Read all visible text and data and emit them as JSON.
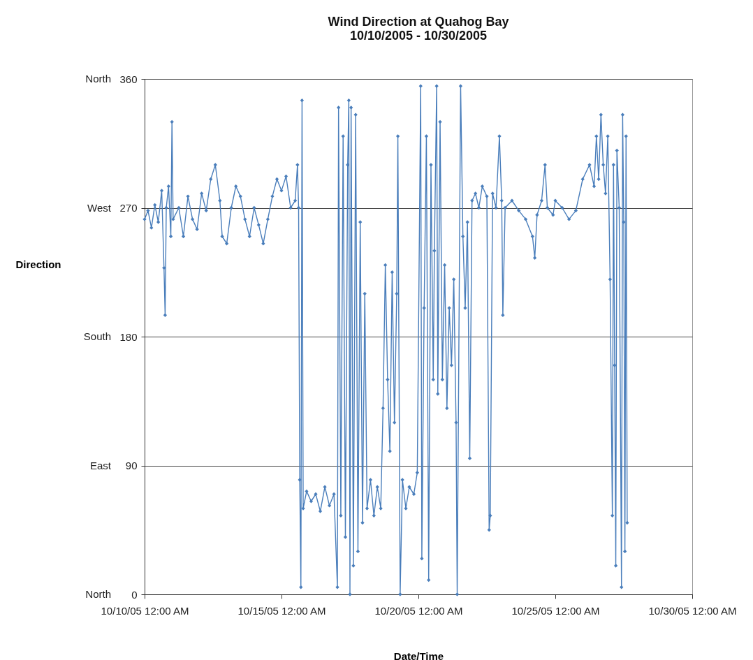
{
  "chart_data": {
    "type": "line",
    "title": "Wind Direction at Quahog Bay",
    "subtitle": "10/10/2005 - 10/30/2005",
    "xlabel": "Date/Time",
    "ylabel": "Direction",
    "x": [
      "2005-10-10T00:00",
      "2005-10-10T03:00",
      "2005-10-10T06:00",
      "2005-10-10T09:00",
      "2005-10-10T12:00",
      "2005-10-10T15:00",
      "2005-10-10T17:00",
      "2005-10-10T18:00",
      "2005-10-10T19:00",
      "2005-10-10T21:00",
      "2005-10-10T23:00",
      "2005-10-11T00:00",
      "2005-10-11T01:00",
      "2005-10-11T06:00",
      "2005-10-11T10:00",
      "2005-10-11T14:00",
      "2005-10-11T18:00",
      "2005-10-11T22:00",
      "2005-10-12T02:00",
      "2005-10-12T06:00",
      "2005-10-12T10:00",
      "2005-10-12T14:00",
      "2005-10-12T18:00",
      "2005-10-12T20:00",
      "2005-10-13T00:00",
      "2005-10-13T04:00",
      "2005-10-13T08:00",
      "2005-10-13T12:00",
      "2005-10-13T16:00",
      "2005-10-13T20:00",
      "2005-10-14T00:00",
      "2005-10-14T04:00",
      "2005-10-14T08:00",
      "2005-10-14T12:00",
      "2005-10-14T16:00",
      "2005-10-14T20:00",
      "2005-10-15T00:00",
      "2005-10-15T04:00",
      "2005-10-15T08:00",
      "2005-10-15T12:00",
      "2005-10-15T14:00",
      "2005-10-15T15:00",
      "2005-10-15T16:00",
      "2005-10-15T17:00",
      "2005-10-15T18:00",
      "2005-10-15T19:00",
      "2005-10-15T22:00",
      "2005-10-16T02:00",
      "2005-10-16T06:00",
      "2005-10-16T10:00",
      "2005-10-16T14:00",
      "2005-10-16T18:00",
      "2005-10-16T22:00",
      "2005-10-17T01:00",
      "2005-10-17T02:00",
      "2005-10-17T04:00",
      "2005-10-17T06:00",
      "2005-10-17T08:00",
      "2005-10-17T10:00",
      "2005-10-17T11:00",
      "2005-10-17T12:00",
      "2005-10-17T13:00",
      "2005-10-17T15:00",
      "2005-10-17T17:00",
      "2005-10-17T19:00",
      "2005-10-17T21:00",
      "2005-10-17T23:00",
      "2005-10-18T01:00",
      "2005-10-18T03:00",
      "2005-10-18T06:00",
      "2005-10-18T09:00",
      "2005-10-18T12:00",
      "2005-10-18T15:00",
      "2005-10-18T17:00",
      "2005-10-18T19:00",
      "2005-10-18T21:00",
      "2005-10-18T23:00",
      "2005-10-19T01:00",
      "2005-10-19T03:00",
      "2005-10-19T05:00",
      "2005-10-19T06:00",
      "2005-10-19T08:00",
      "2005-10-19T10:00",
      "2005-10-19T13:00",
      "2005-10-19T16:00",
      "2005-10-19T20:00",
      "2005-10-19T23:00",
      "2005-10-20T02:00",
      "2005-10-20T03:00",
      "2005-10-20T05:00",
      "2005-10-20T07:00",
      "2005-10-20T09:00",
      "2005-10-20T11:00",
      "2005-10-20T13:00",
      "2005-10-20T14:00",
      "2005-10-20T16:00",
      "2005-10-20T17:00",
      "2005-10-20T19:00",
      "2005-10-20T21:00",
      "2005-10-20T23:00",
      "2005-10-21T01:00",
      "2005-10-21T03:00",
      "2005-10-21T05:00",
      "2005-10-21T07:00",
      "2005-10-21T09:00",
      "2005-10-21T10:00",
      "2005-10-21T13:00",
      "2005-10-21T15:00",
      "2005-10-21T17:00",
      "2005-10-21T19:00",
      "2005-10-21T21:00",
      "2005-10-21T23:00",
      "2005-10-22T02:00",
      "2005-10-22T05:00",
      "2005-10-22T08:00",
      "2005-10-22T12:00",
      "2005-10-22T14:00",
      "2005-10-22T15:00",
      "2005-10-22T17:00",
      "2005-10-22T20:00",
      "2005-10-22T23:00",
      "2005-10-23T01:00",
      "2005-10-23T02:00",
      "2005-10-23T04:00",
      "2005-10-23T10:00",
      "2005-10-23T16:00",
      "2005-10-23T22:00",
      "2005-10-24T04:00",
      "2005-10-24T06:00",
      "2005-10-24T08:00",
      "2005-10-24T12:00",
      "2005-10-24T15:00",
      "2005-10-24T17:00",
      "2005-10-24T22:00",
      "2005-10-25T00:00",
      "2005-10-25T06:00",
      "2005-10-25T12:00",
      "2005-10-25T18:00",
      "2005-10-26T00:00",
      "2005-10-26T06:00",
      "2005-10-26T10:00",
      "2005-10-26T12:00",
      "2005-10-26T14:00",
      "2005-10-26T16:00",
      "2005-10-26T18:00",
      "2005-10-26T20:00",
      "2005-10-26T22:00",
      "2005-10-27T00:00",
      "2005-10-27T02:00",
      "2005-10-27T03:00",
      "2005-10-27T04:00",
      "2005-10-27T05:00",
      "2005-10-27T06:00",
      "2005-10-27T08:00",
      "2005-10-27T10:00",
      "2005-10-27T11:00",
      "2005-10-27T12:00",
      "2005-10-27T13:00",
      "2005-10-27T14:00",
      "2005-10-27T15:00"
    ],
    "series": [
      {
        "color": "#4a7ebb",
        "values": [
          262,
          268,
          256,
          272,
          260,
          282,
          228,
          195,
          270,
          285,
          250,
          330,
          262,
          270,
          250,
          278,
          262,
          255,
          280,
          268,
          290,
          300,
          275,
          250,
          245,
          270,
          285,
          278,
          262,
          250,
          270,
          258,
          245,
          262,
          278,
          290,
          282,
          292,
          270,
          275,
          300,
          270,
          80,
          5,
          345,
          60,
          72,
          65,
          70,
          58,
          75,
          62,
          70,
          5,
          340,
          55,
          320,
          40,
          300,
          345,
          0,
          340,
          20,
          335,
          30,
          260,
          50,
          210,
          60,
          80,
          55,
          75,
          60,
          130,
          230,
          150,
          100,
          225,
          120,
          210,
          320,
          0,
          80,
          60,
          75,
          70,
          85,
          355,
          25,
          200,
          320,
          10,
          300,
          150,
          240,
          355,
          140,
          330,
          150,
          230,
          130,
          200,
          160,
          220,
          120,
          0,
          355,
          250,
          200,
          260,
          95,
          275,
          280,
          270,
          285,
          278,
          45,
          55,
          280,
          270,
          320,
          275,
          195,
          270,
          275,
          268,
          262,
          250,
          235,
          265,
          275,
          300,
          270,
          265,
          275,
          270,
          262,
          268,
          290,
          300,
          285,
          320,
          290,
          335,
          300,
          280,
          320,
          220,
          55,
          300,
          160,
          20,
          310,
          270,
          5,
          335,
          260,
          30,
          320,
          50
        ]
      }
    ],
    "xlim": [
      "2005-10-10T00:00",
      "2005-10-30T00:00"
    ],
    "xticks": [
      {
        "value": "2005-10-10T00:00",
        "label": "10/10/05 12:00 AM"
      },
      {
        "value": "2005-10-15T00:00",
        "label": "10/15/05 12:00 AM"
      },
      {
        "value": "2005-10-20T00:00",
        "label": "10/20/05 12:00 AM"
      },
      {
        "value": "2005-10-25T00:00",
        "label": "10/25/05 12:00 AM"
      },
      {
        "value": "2005-10-30T00:00",
        "label": "10/30/05 12:00 AM"
      }
    ],
    "ylim": [
      0,
      360
    ],
    "yticks": [
      0,
      90,
      180,
      270,
      360
    ],
    "annotations": [
      "North",
      "East",
      "South",
      "West",
      "North"
    ],
    "grid": "y",
    "marker": "diamond",
    "line_style": "solid"
  }
}
